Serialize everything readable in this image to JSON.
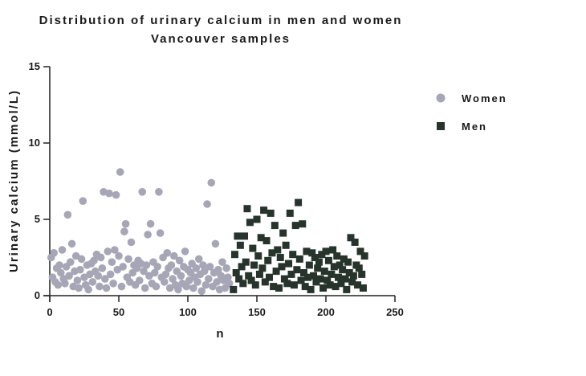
{
  "chart_data": {
    "type": "scatter",
    "title": "Distribution of urinary calcium in men and women",
    "subtitle": "Vancouver samples",
    "xlabel": "n",
    "ylabel": "Urinary calcium (mmol/L)",
    "xlim": [
      0,
      250
    ],
    "ylim": [
      0,
      15
    ],
    "xticks": [
      "0",
      "50",
      "100",
      "150",
      "200",
      "250"
    ],
    "yticks": [
      "0",
      "5",
      "10",
      "15"
    ],
    "grid": false,
    "legend_position": "right",
    "series": [
      {
        "name": "Women",
        "marker": "circle",
        "color": "#a6a6b6",
        "points": [
          [
            1,
            2.5
          ],
          [
            2,
            1.2
          ],
          [
            3,
            2.8
          ],
          [
            4,
            0.9
          ],
          [
            5,
            1.8
          ],
          [
            6,
            0.7
          ],
          [
            7,
            2.0
          ],
          [
            8,
            1.5
          ],
          [
            9,
            3.0
          ],
          [
            10,
            1.1
          ],
          [
            11,
            0.8
          ],
          [
            12,
            1.9
          ],
          [
            13,
            5.3
          ],
          [
            14,
            1.3
          ],
          [
            15,
            2.2
          ],
          [
            16,
            3.4
          ],
          [
            17,
            0.6
          ],
          [
            18,
            1.6
          ],
          [
            19,
            2.6
          ],
          [
            20,
            1.0
          ],
          [
            21,
            0.5
          ],
          [
            22,
            1.7
          ],
          [
            23,
            2.4
          ],
          [
            24,
            6.2
          ],
          [
            25,
            1.2
          ],
          [
            26,
            0.7
          ],
          [
            27,
            2.0
          ],
          [
            28,
            0.4
          ],
          [
            29,
            1.4
          ],
          [
            30,
            2.1
          ],
          [
            31,
            0.9
          ],
          [
            32,
            2.3
          ],
          [
            33,
            1.6
          ],
          [
            34,
            2.7
          ],
          [
            35,
            1.3
          ],
          [
            36,
            0.6
          ],
          [
            37,
            2.5
          ],
          [
            38,
            1.8
          ],
          [
            39,
            6.8
          ],
          [
            40,
            1.1
          ],
          [
            41,
            0.5
          ],
          [
            42,
            2.9
          ],
          [
            43,
            6.7
          ],
          [
            44,
            1.4
          ],
          [
            45,
            2.2
          ],
          [
            46,
            0.8
          ],
          [
            47,
            3.0
          ],
          [
            48,
            6.6
          ],
          [
            49,
            1.7
          ],
          [
            50,
            2.6
          ],
          [
            51,
            8.1
          ],
          [
            52,
            0.6
          ],
          [
            53,
            1.9
          ],
          [
            54,
            4.2
          ],
          [
            55,
            4.7
          ],
          [
            56,
            1.2
          ],
          [
            57,
            2.4
          ],
          [
            58,
            0.9
          ],
          [
            59,
            3.5
          ],
          [
            60,
            1.5
          ],
          [
            61,
            2.0
          ],
          [
            62,
            0.7
          ],
          [
            63,
            1.8
          ],
          [
            64,
            2.3
          ],
          [
            65,
            1.0
          ],
          [
            66,
            2.1
          ],
          [
            67,
            6.8
          ],
          [
            68,
            1.6
          ],
          [
            69,
            0.5
          ],
          [
            70,
            2.0
          ],
          [
            71,
            4.0
          ],
          [
            72,
            1.3
          ],
          [
            73,
            4.7
          ],
          [
            74,
            0.8
          ],
          [
            75,
            2.2
          ],
          [
            76,
            1.5
          ],
          [
            77,
            0.6
          ],
          [
            78,
            1.9
          ],
          [
            79,
            6.8
          ],
          [
            80,
            4.1
          ],
          [
            81,
            1.2
          ],
          [
            82,
            2.5
          ],
          [
            83,
            0.9
          ],
          [
            84,
            1.4
          ],
          [
            85,
            2.8
          ],
          [
            86,
            1.8
          ],
          [
            87,
            0.5
          ],
          [
            88,
            2.0
          ],
          [
            89,
            1.1
          ],
          [
            90,
            2.6
          ],
          [
            91,
            0.7
          ],
          [
            92,
            1.6
          ],
          [
            93,
            0.4
          ],
          [
            94,
            2.3
          ],
          [
            95,
            1.3
          ],
          [
            96,
            0.8
          ],
          [
            97,
            1.9
          ],
          [
            98,
            2.9
          ],
          [
            99,
            0.6
          ],
          [
            100,
            1.7
          ],
          [
            101,
            1.0
          ],
          [
            102,
            1.5
          ],
          [
            103,
            2.1
          ],
          [
            104,
            0.5
          ],
          [
            105,
            1.2
          ],
          [
            106,
            1.8
          ],
          [
            107,
            0.9
          ],
          [
            108,
            2.4
          ],
          [
            109,
            1.4
          ],
          [
            110,
            0.3
          ],
          [
            111,
            2.0
          ],
          [
            112,
            1.6
          ],
          [
            113,
            0.7
          ],
          [
            114,
            6.0
          ],
          [
            115,
            1.1
          ],
          [
            116,
            1.9
          ],
          [
            117,
            7.4
          ],
          [
            118,
            0.6
          ],
          [
            119,
            1.5
          ],
          [
            120,
            3.4
          ],
          [
            121,
            0.9
          ],
          [
            122,
            1.7
          ],
          [
            123,
            0.4
          ],
          [
            124,
            1.3
          ],
          [
            125,
            2.2
          ],
          [
            126,
            1.0
          ],
          [
            127,
            0.5
          ],
          [
            128,
            1.8
          ],
          [
            129,
            1.2
          ],
          [
            130,
            0.8
          ]
        ]
      },
      {
        "name": "Men",
        "marker": "square",
        "color": "#27342c",
        "points": [
          [
            133,
            0.4
          ],
          [
            134,
            2.7
          ],
          [
            135,
            1.5
          ],
          [
            136,
            3.9
          ],
          [
            137,
            1.1
          ],
          [
            138,
            3.3
          ],
          [
            139,
            1.9
          ],
          [
            140,
            0.8
          ],
          [
            141,
            3.9
          ],
          [
            142,
            2.2
          ],
          [
            143,
            5.7
          ],
          [
            144,
            1.3
          ],
          [
            145,
            4.8
          ],
          [
            146,
            1.0
          ],
          [
            147,
            3.1
          ],
          [
            148,
            2.0
          ],
          [
            149,
            0.7
          ],
          [
            150,
            5.0
          ],
          [
            151,
            2.6
          ],
          [
            152,
            1.4
          ],
          [
            153,
            3.8
          ],
          [
            154,
            1.8
          ],
          [
            155,
            5.6
          ],
          [
            156,
            0.9
          ],
          [
            157,
            3.6
          ],
          [
            158,
            2.3
          ],
          [
            159,
            1.2
          ],
          [
            160,
            5.4
          ],
          [
            161,
            2.8
          ],
          [
            162,
            0.6
          ],
          [
            163,
            4.6
          ],
          [
            164,
            1.6
          ],
          [
            165,
            3.0
          ],
          [
            166,
            0.5
          ],
          [
            167,
            2.5
          ],
          [
            168,
            1.9
          ],
          [
            169,
            4.1
          ],
          [
            170,
            1.1
          ],
          [
            171,
            3.3
          ],
          [
            172,
            0.8
          ],
          [
            173,
            2.1
          ],
          [
            174,
            5.4
          ],
          [
            175,
            1.4
          ],
          [
            176,
            2.7
          ],
          [
            177,
            0.7
          ],
          [
            178,
            4.6
          ],
          [
            179,
            1.7
          ],
          [
            180,
            6.1
          ],
          [
            181,
            2.4
          ],
          [
            182,
            1.0
          ],
          [
            183,
            4.7
          ],
          [
            184,
            1.5
          ],
          [
            185,
            0.6
          ],
          [
            186,
            2.9
          ],
          [
            187,
            1.2
          ],
          [
            188,
            2.0
          ],
          [
            189,
            0.4
          ],
          [
            190,
            2.8
          ],
          [
            191,
            1.3
          ],
          [
            192,
            2.5
          ],
          [
            193,
            0.9
          ],
          [
            194,
            1.8
          ],
          [
            195,
            2.2
          ],
          [
            196,
            1.1
          ],
          [
            197,
            2.7
          ],
          [
            198,
            0.5
          ],
          [
            199,
            1.6
          ],
          [
            200,
            2.9
          ],
          [
            201,
            1.0
          ],
          [
            202,
            2.3
          ],
          [
            203,
            0.7
          ],
          [
            204,
            1.4
          ],
          [
            205,
            3.0
          ],
          [
            206,
            1.9
          ],
          [
            207,
            0.6
          ],
          [
            208,
            2.6
          ],
          [
            209,
            1.2
          ],
          [
            210,
            2.0
          ],
          [
            211,
            0.8
          ],
          [
            212,
            1.7
          ],
          [
            213,
            2.4
          ],
          [
            214,
            1.1
          ],
          [
            215,
            0.4
          ],
          [
            216,
            2.2
          ],
          [
            217,
            1.5
          ],
          [
            218,
            3.8
          ],
          [
            219,
            0.9
          ],
          [
            220,
            1.3
          ],
          [
            221,
            3.5
          ],
          [
            222,
            2.0
          ],
          [
            223,
            0.7
          ],
          [
            224,
            1.8
          ],
          [
            225,
            2.9
          ],
          [
            226,
            1.4
          ],
          [
            227,
            0.5
          ],
          [
            228,
            2.6
          ]
        ]
      }
    ]
  }
}
